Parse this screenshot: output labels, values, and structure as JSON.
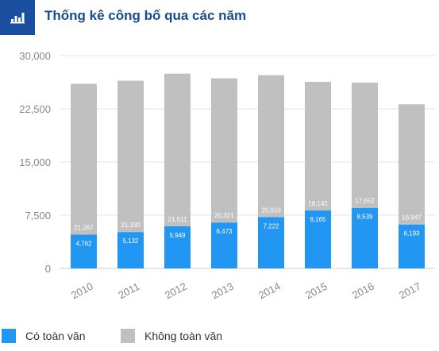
{
  "header": {
    "title": "Thống kê công bố qua các năm",
    "icon": "bar-chart-icon"
  },
  "colors": {
    "header_bg": "#1a4fa0",
    "title": "#1a4a8e",
    "series_full": "#2196f3",
    "series_no_full": "#c0c0c0"
  },
  "chart_data": {
    "type": "bar",
    "stacked": true,
    "categories": [
      "2010",
      "2011",
      "2012",
      "2013",
      "2014",
      "2015",
      "2016",
      "2017"
    ],
    "series": [
      {
        "name": "Có toàn văn",
        "values": [
          4762,
          5132,
          5949,
          6473,
          7222,
          8165,
          8539,
          6193
        ],
        "labels": [
          "4,762",
          "5,132",
          "5,949",
          "6,473",
          "7,222",
          "8,165",
          "8,539",
          "6,193"
        ]
      },
      {
        "name": "Không toàn văn",
        "values": [
          21267,
          21330,
          21511,
          20321,
          20010,
          18142,
          17652,
          16947
        ],
        "labels": [
          "21,267",
          "21,330",
          "21,511",
          "20,321",
          "20,010",
          "18,142",
          "17,652",
          "16,947"
        ]
      }
    ],
    "ylim": [
      0,
      30000
    ],
    "yticks": [
      0,
      7500,
      15000,
      22500,
      30000
    ],
    "ytick_labels": [
      "0",
      "7,500",
      "15,000",
      "22,500",
      "30,000"
    ],
    "grid": true,
    "legend_position": "bottom"
  },
  "legend": {
    "items": [
      {
        "label": "Có toàn văn"
      },
      {
        "label": "Không toàn văn"
      }
    ]
  }
}
